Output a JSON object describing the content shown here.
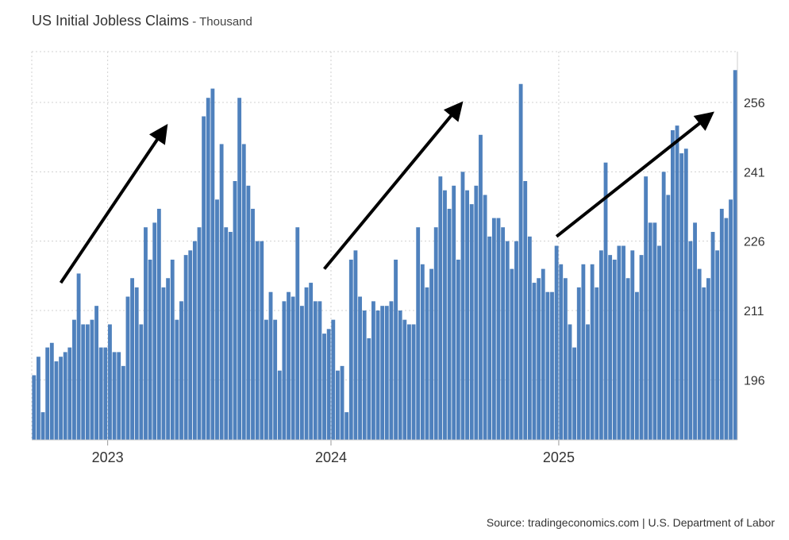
{
  "title": "US Initial Jobless Claims",
  "unit_separator": " - ",
  "unit": "Thousand",
  "source": "Source: tradingeconomics.com | U.S. Department of Labor",
  "colors": {
    "bar": "#4f81bd",
    "grid": "#d0d0d0",
    "arrow": "#000000",
    "text": "#333333"
  },
  "chart_data": {
    "type": "bar",
    "title": "US Initial Jobless Claims - Thousand",
    "xlabel": "",
    "ylabel": "Thousand",
    "ylim": [
      183,
      267
    ],
    "grid": true,
    "y_axis_side": "right",
    "yticks": [
      196,
      211,
      226,
      241,
      256
    ],
    "xtick_labels": [
      {
        "label": "2023",
        "index": 17
      },
      {
        "label": "2024",
        "index": 67
      },
      {
        "label": "2025",
        "index": 118
      }
    ],
    "values": [
      197,
      201,
      189,
      203,
      204,
      200,
      201,
      202,
      203,
      209,
      219,
      208,
      208,
      209,
      212,
      203,
      203,
      208,
      202,
      202,
      199,
      214,
      218,
      216,
      208,
      229,
      222,
      230,
      233,
      216,
      218,
      222,
      209,
      213,
      223,
      224,
      226,
      229,
      253,
      257,
      259,
      235,
      247,
      229,
      228,
      239,
      257,
      247,
      238,
      233,
      226,
      226,
      209,
      215,
      209,
      198,
      213,
      215,
      214,
      229,
      212,
      216,
      217,
      213,
      213,
      206,
      207,
      209,
      198,
      199,
      189,
      222,
      224,
      214,
      211,
      205,
      213,
      211,
      212,
      212,
      213,
      222,
      211,
      209,
      208,
      208,
      229,
      221,
      216,
      220,
      229,
      240,
      237,
      233,
      238,
      222,
      241,
      237,
      234,
      238,
      249,
      236,
      227,
      231,
      231,
      229,
      226,
      220,
      226,
      260,
      239,
      227,
      217,
      218,
      220,
      215,
      215,
      225,
      221,
      218,
      208,
      203,
      216,
      221,
      208,
      221,
      216,
      224,
      243,
      223,
      222,
      225,
      225,
      218,
      224,
      215,
      223,
      240,
      230,
      230,
      225,
      241,
      236,
      250,
      251,
      245,
      246,
      226,
      230,
      220,
      216,
      218,
      228,
      224,
      233,
      231,
      235,
      263
    ],
    "trend_arrows": [
      {
        "from_index": 6,
        "from_value": 217,
        "to_index": 29,
        "to_value": 250
      },
      {
        "from_index": 65,
        "from_value": 220,
        "to_index": 95,
        "to_value": 255
      },
      {
        "from_index": 117,
        "from_value": 227,
        "to_index": 151,
        "to_value": 253
      }
    ]
  }
}
